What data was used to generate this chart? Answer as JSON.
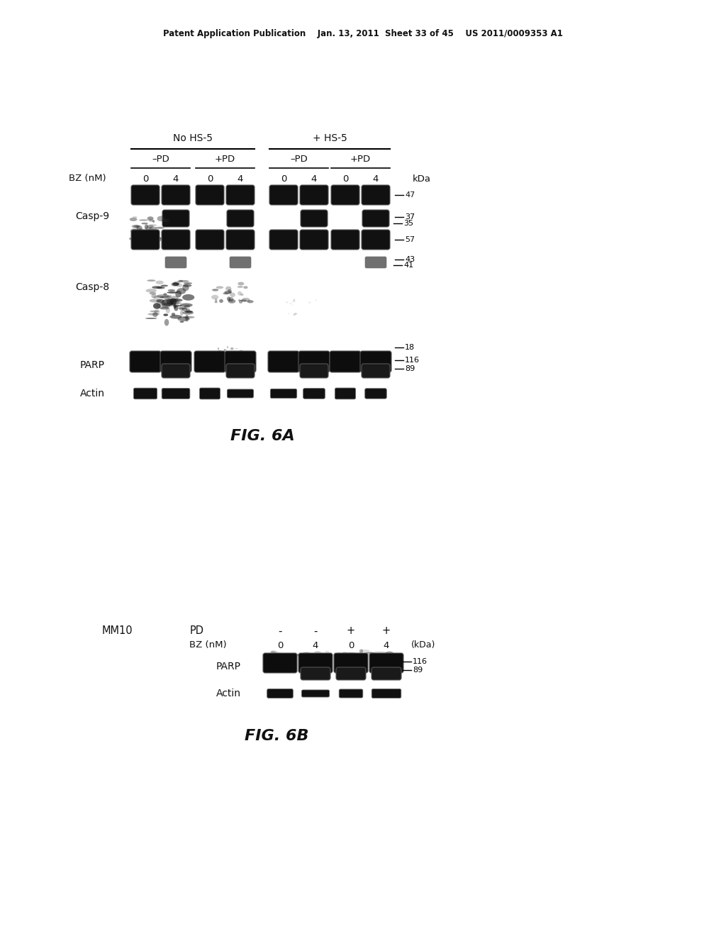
{
  "header_text": "Patent Application Publication    Jan. 13, 2011  Sheet 33 of 45    US 2011/0009353 A1",
  "fig6a_label": "FIG. 6A",
  "fig6b_label": "FIG. 6B",
  "background_color": "#ffffff",
  "fig6a": {
    "group_label_nohs5": "No HS-5",
    "group_label_hs5": "+ HS-5",
    "pd_labels": [
      "-PD",
      "+PD",
      "-PD",
      "+PD"
    ],
    "bz_label": "BZ (nM)",
    "bz_values": [
      "0",
      "4",
      "0",
      "4",
      "0",
      "4",
      "0",
      "4"
    ],
    "kda_label": "kDa"
  },
  "fig6b": {
    "mm10_label": "MM10",
    "pd_label": "PD",
    "pd_values": [
      "-",
      "-",
      "+",
      "+"
    ],
    "bz_label": "BZ (nM)",
    "bz_values": [
      "0",
      "4",
      "0",
      "4"
    ],
    "kda_label": "(kDa)"
  }
}
